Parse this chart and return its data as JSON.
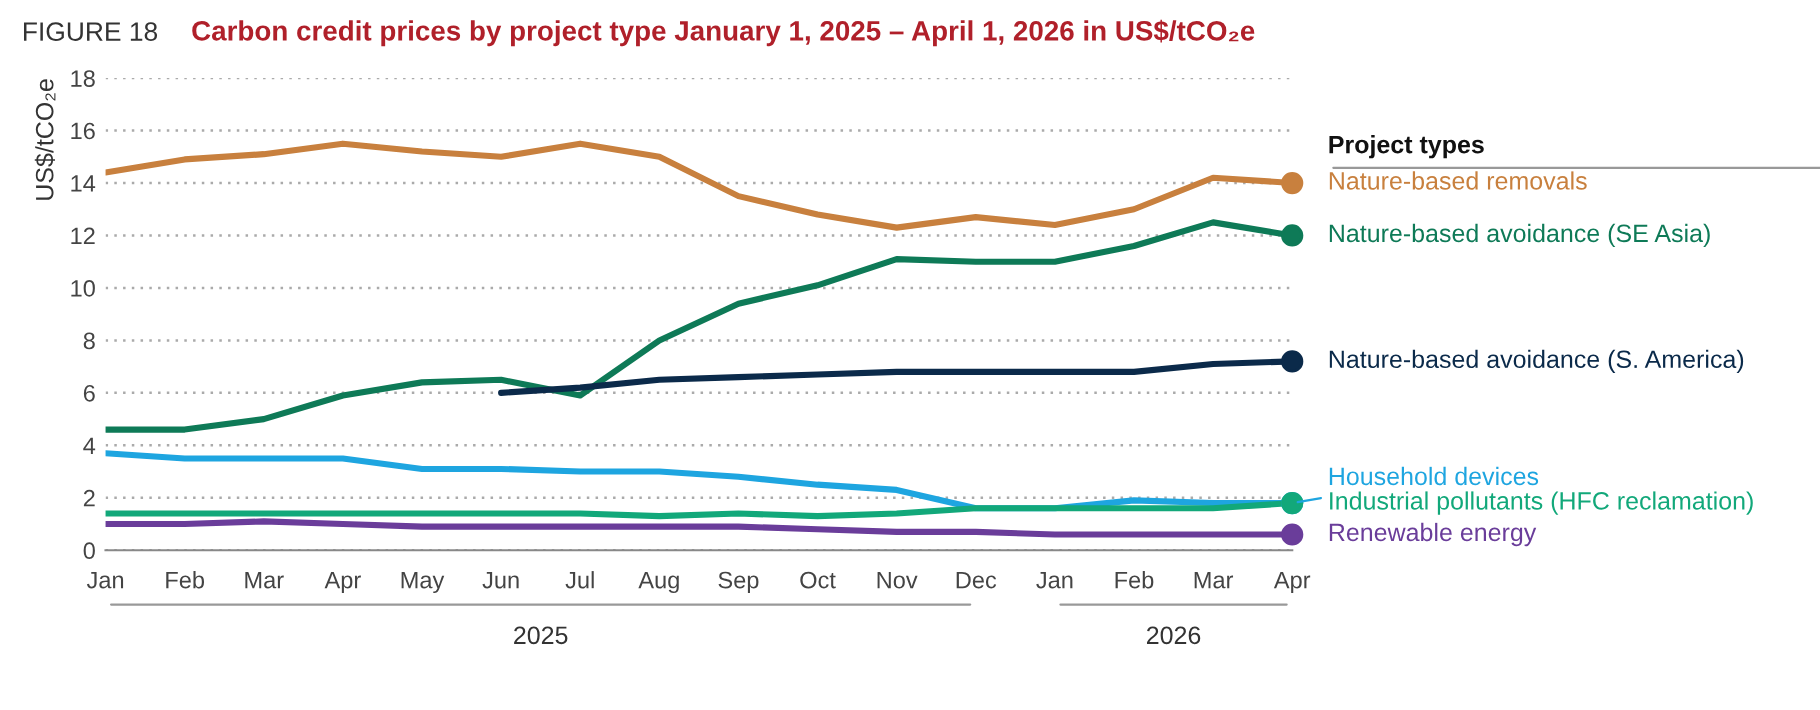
{
  "chart_data": {
    "type": "line",
    "title": "Carbon credit prices by project type January 1, 2025 – April 1, 2026 in US$/tCO₂e",
    "ylabel": "US$/tCO₂e",
    "legend_title": "Project types",
    "annotations": [
      "FIGURE 18",
      "2025",
      "2026"
    ],
    "categories": [
      "Jan",
      "Feb",
      "Mar",
      "Apr",
      "May",
      "Jun",
      "Jul",
      "Aug",
      "Sep",
      "Oct",
      "Nov",
      "Dec",
      "Jan",
      "Feb",
      "Mar",
      "Apr"
    ],
    "ylim": [
      0,
      18
    ],
    "yticks": [
      0,
      2,
      4,
      6,
      8,
      10,
      12,
      14,
      16,
      18
    ],
    "grid": "y",
    "legend": "right",
    "line_style": "solid",
    "series": [
      {
        "name": "Nature-based removals",
        "color": "#c8803e",
        "values": [
          14.4,
          14.9,
          15.1,
          15.5,
          15.2,
          15.0,
          15.5,
          15.0,
          13.5,
          12.8,
          12.3,
          12.7,
          12.4,
          13.0,
          14.2,
          14.0
        ]
      },
      {
        "name": "Nature-based avoidance (SE Asia)",
        "color": "#0e7a57",
        "values": [
          4.6,
          4.6,
          5.0,
          5.9,
          6.4,
          6.5,
          5.9,
          8.0,
          9.4,
          10.1,
          11.1,
          11.0,
          11.0,
          11.6,
          12.5,
          12.0
        ]
      },
      {
        "name": "Nature-based avoidance (S. America)",
        "color": "#0b2a4a",
        "values": [
          null,
          null,
          null,
          null,
          null,
          6.0,
          6.2,
          6.5,
          6.6,
          6.7,
          6.8,
          6.8,
          6.8,
          6.8,
          7.1,
          7.2
        ]
      },
      {
        "name": "Household devices",
        "color": "#1ea5e0",
        "values": [
          3.7,
          3.5,
          3.5,
          3.5,
          3.1,
          3.1,
          3.0,
          3.0,
          2.8,
          2.5,
          2.3,
          1.6,
          1.6,
          1.9,
          1.8,
          1.8
        ]
      },
      {
        "name": "Industrial pollutants (HFC reclamation)",
        "color": "#12a87a",
        "values": [
          1.4,
          1.4,
          1.4,
          1.4,
          1.4,
          1.4,
          1.4,
          1.3,
          1.4,
          1.3,
          1.4,
          1.6,
          1.6,
          1.6,
          1.6,
          1.8
        ]
      },
      {
        "name": "Renewable energy",
        "color": "#6a3d9a",
        "values": [
          1.0,
          1.0,
          1.1,
          1.0,
          0.9,
          0.9,
          0.9,
          0.9,
          0.9,
          0.8,
          0.7,
          0.7,
          0.6,
          0.6,
          0.6,
          0.6
        ]
      }
    ]
  }
}
